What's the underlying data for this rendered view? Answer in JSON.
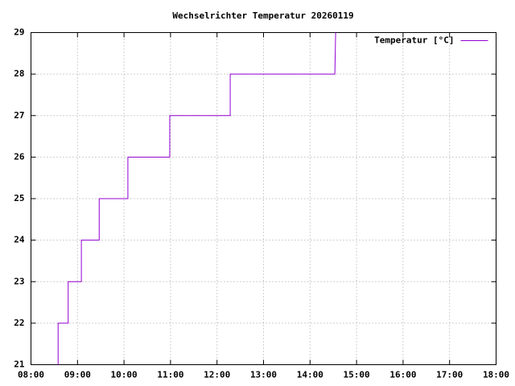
{
  "chart_data": {
    "type": "line",
    "title": "Wechselrichter Temperatur 20260119",
    "x": [
      "08:35",
      "08:35",
      "08:48",
      "08:48",
      "09:05",
      "09:05",
      "09:28",
      "09:28",
      "10:05",
      "10:05",
      "10:59",
      "10:59",
      "12:17",
      "12:17",
      "14:32",
      "14:33"
    ],
    "series": [
      {
        "name": "Temperatur [°C]",
        "color": "#9400d3",
        "values": [
          21,
          22,
          22,
          23,
          23,
          24,
          24,
          25,
          25,
          26,
          26,
          27,
          27,
          28,
          28,
          29
        ]
      }
    ],
    "xlim": [
      "08:00",
      "18:00"
    ],
    "xticks": [
      "08:00",
      "09:00",
      "10:00",
      "11:00",
      "12:00",
      "13:00",
      "14:00",
      "15:00",
      "16:00",
      "17:00",
      "18:00"
    ],
    "ylim": [
      21,
      29
    ],
    "yticks": [
      21,
      22,
      23,
      24,
      25,
      26,
      27,
      28,
      29
    ],
    "grid": true,
    "legend": "top-right"
  }
}
